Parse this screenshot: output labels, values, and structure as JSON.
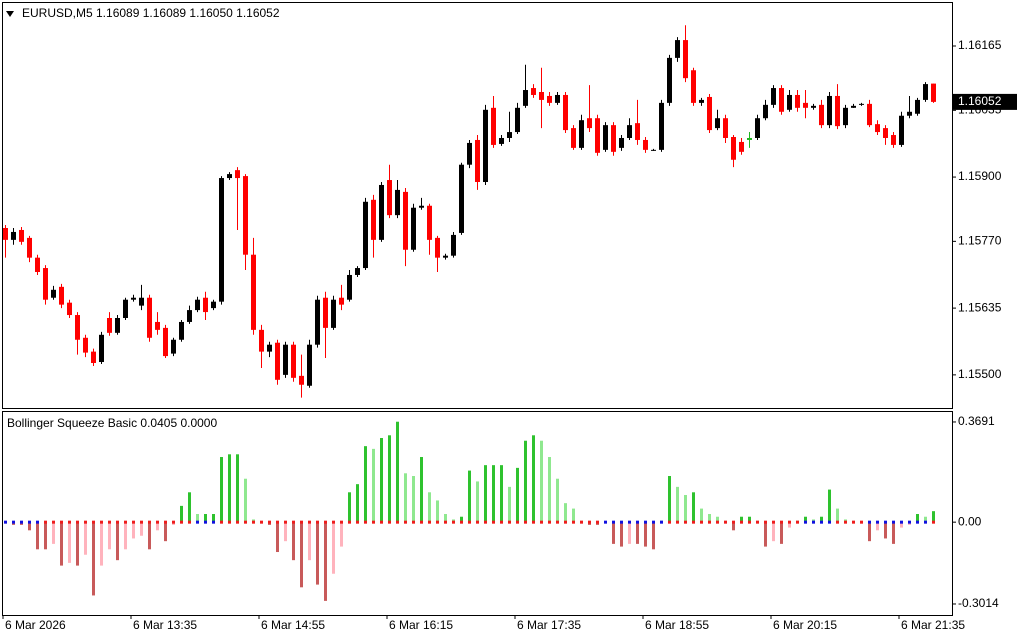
{
  "chart_data": [
    {
      "type": "candlestick",
      "title": "EURUSD,M5  1.16089 1.16089 1.16050 1.16052",
      "ylim": [
        1.15433,
        1.16254
      ],
      "yticks": [
        1.16165,
        1.16035,
        {
          "value": 1.159,
          "label": "1.15900"
        },
        {
          "value": 1.1577,
          "label": "1.15770"
        },
        1.15635,
        {
          "value": 1.155,
          "label": "1.15500"
        }
      ],
      "grid": false,
      "up_color": "#000000",
      "down_color": "#ff0000",
      "special_candles": [
        {
          "index": 93,
          "color": "#22b522"
        }
      ],
      "last_price": 1.16052,
      "open": [
        1.15797,
        1.15773,
        1.15793,
        1.15777,
        1.15737,
        1.15716,
        1.15656,
        1.15678,
        1.15646,
        1.15621,
        1.15575,
        1.15547,
        1.15526,
        1.15615,
        1.15585,
        1.15615,
        1.15652,
        1.1564,
        1.15656,
        1.15607,
        1.15595,
        1.15543,
        1.15571,
        1.15607,
        1.15631,
        1.15656,
        1.15635,
        1.15648,
        1.15898,
        1.15914,
        1.15902,
        1.15743,
        1.15591,
        1.15547,
        1.15565,
        1.155,
        1.15561,
        1.15498,
        1.15478,
        1.15561,
        1.15656,
        1.15595,
        1.15656,
        1.15652,
        1.15702,
        1.15716,
        1.15854,
        1.15773,
        1.15894,
        1.15823,
        1.1587,
        1.15753,
        1.15838,
        1.15842,
        1.15777,
        1.15737,
        1.15741,
        1.15787,
        1.15925,
        1.15975,
        1.1589,
        1.1604,
        1.15967,
        1.15979,
        1.15991,
        1.16044,
        1.1608,
        1.16072,
        1.16064,
        1.1605,
        1.16066,
        1.15999,
        1.15959,
        1.16019,
        1.16019,
        1.15955,
        1.16005,
        1.15959,
        1.15979,
        1.16009,
        1.15975,
        1.15955,
        1.15955,
        1.1605,
        1.16141,
        1.16177,
        1.16116,
        1.1605,
        1.16062,
        1.15999,
        1.16019,
        1.15981,
        1.15971,
        1.15975,
        1.15979,
        1.16019,
        1.16046,
        1.1608,
        1.16036,
        1.16066,
        1.1605,
        1.1604,
        1.16046,
        1.16005,
        1.16064,
        1.16005,
        1.1604,
        1.16046,
        1.16048,
        1.16007,
        1.15999,
        1.15985,
        1.15965,
        1.16024,
        1.16028,
        1.16056,
        1.16089
      ],
      "high": [
        1.15803,
        1.15797,
        1.15799,
        1.15781,
        1.15743,
        1.15722,
        1.1568,
        1.15684,
        1.15652,
        1.15627,
        1.15581,
        1.15553,
        1.15587,
        1.15627,
        1.15621,
        1.15656,
        1.15662,
        1.15682,
        1.15662,
        1.15627,
        1.15601,
        1.15575,
        1.15611,
        1.1564,
        1.15658,
        1.15668,
        1.15652,
        1.15902,
        1.1591,
        1.1592,
        1.15906,
        1.15777,
        1.15601,
        1.15567,
        1.15571,
        1.15567,
        1.15567,
        1.15541,
        1.15571,
        1.1566,
        1.15668,
        1.1566,
        1.15682,
        1.15712,
        1.1572,
        1.15858,
        1.15864,
        1.1589,
        1.15925,
        1.15894,
        1.15878,
        1.15846,
        1.15858,
        1.15846,
        1.15781,
        1.15745,
        1.15789,
        1.15929,
        1.15975,
        1.15985,
        1.16046,
        1.16064,
        1.15985,
        1.16032,
        1.1605,
        1.16127,
        1.16088,
        1.16121,
        1.16072,
        1.16072,
        1.16072,
        1.16005,
        1.16026,
        1.16086,
        1.16026,
        1.16011,
        1.16011,
        1.15985,
        1.16019,
        1.16056,
        1.15981,
        1.15957,
        1.16056,
        1.16147,
        1.16183,
        1.16207,
        1.16121,
        1.1606,
        1.16068,
        1.16036,
        1.16026,
        1.15985,
        1.15979,
        1.15991,
        1.16026,
        1.16056,
        1.16086,
        1.16086,
        1.16076,
        1.16076,
        1.16076,
        1.16048,
        1.16056,
        1.16072,
        1.16088,
        1.16046,
        1.16048,
        1.1605,
        1.16056,
        1.16015,
        1.16005,
        1.15991,
        1.16032,
        1.16064,
        1.1606,
        1.16092,
        1.16089
      ],
      "low": [
        1.15737,
        1.15763,
        1.15763,
        1.15728,
        1.15702,
        1.15642,
        1.15652,
        1.15635,
        1.15615,
        1.15541,
        1.15536,
        1.15518,
        1.15522,
        1.15579,
        1.15581,
        1.15611,
        1.15648,
        1.15631,
        1.15567,
        1.15581,
        1.15534,
        1.15538,
        1.15567,
        1.15603,
        1.15627,
        1.15611,
        1.15631,
        1.15642,
        1.15894,
        1.15793,
        1.15712,
        1.15581,
        1.15514,
        1.15536,
        1.1548,
        1.15494,
        1.15486,
        1.15454,
        1.15474,
        1.15555,
        1.15534,
        1.15591,
        1.15631,
        1.15648,
        1.15698,
        1.15712,
        1.15737,
        1.15769,
        1.15817,
        1.15817,
        1.1572,
        1.15749,
        1.15834,
        1.15743,
        1.15708,
        1.15733,
        1.15737,
        1.15783,
        1.15918,
        1.15874,
        1.15884,
        1.15959,
        1.15963,
        1.15971,
        1.15987,
        1.1604,
        1.1606,
        1.15999,
        1.16044,
        1.16046,
        1.15989,
        1.15955,
        1.15955,
        1.15991,
        1.15943,
        1.15951,
        1.15943,
        1.15953,
        1.15975,
        1.15965,
        1.15949,
        1.15953,
        1.15951,
        1.16044,
        1.16133,
        1.16092,
        1.16044,
        1.16044,
        1.15989,
        1.15995,
        1.15969,
        1.1592,
        1.15945,
        1.15959,
        1.15975,
        1.16015,
        1.1604,
        1.16026,
        1.16032,
        1.16032,
        1.16019,
        1.16036,
        1.15999,
        1.15999,
        1.15997,
        1.15999,
        1.1604,
        1.16044,
        1.16001,
        1.15985,
        1.15965,
        1.15959,
        1.15961,
        1.16019,
        1.16024,
        1.16052,
        1.1605
      ],
      "close": [
        1.15773,
        1.15789,
        1.15769,
        1.15737,
        1.15708,
        1.15652,
        1.15672,
        1.15642,
        1.15621,
        1.15571,
        1.15545,
        1.15524,
        1.15581,
        1.15585,
        1.15615,
        1.15652,
        1.15656,
        1.15656,
        1.15575,
        1.15591,
        1.15538,
        1.15571,
        1.15607,
        1.15631,
        1.15652,
        1.15627,
        1.15648,
        1.15898,
        1.15906,
        1.15898,
        1.15743,
        1.15591,
        1.15547,
        1.15561,
        1.1549,
        1.15561,
        1.15494,
        1.1548,
        1.15561,
        1.15652,
        1.15595,
        1.15652,
        1.15642,
        1.15702,
        1.15716,
        1.1585,
        1.15773,
        1.15884,
        1.15823,
        1.15874,
        1.15753,
        1.15838,
        1.15842,
        1.15773,
        1.15737,
        1.15741,
        1.15783,
        1.15925,
        1.15969,
        1.1589,
        1.16036,
        1.15965,
        1.15979,
        1.15991,
        1.1604,
        1.16076,
        1.16066,
        1.16056,
        1.1605,
        1.16066,
        1.15995,
        1.15959,
        1.16015,
        1.15999,
        1.15949,
        1.16005,
        1.15951,
        1.15979,
        1.16005,
        1.15975,
        1.15955,
        1.15955,
        1.1605,
        1.16141,
        1.16177,
        1.161,
        1.1605,
        1.16056,
        1.15995,
        1.16019,
        1.15979,
        1.15935,
        1.15951,
        1.15979,
        1.16019,
        1.16046,
        1.1608,
        1.16032,
        1.16066,
        1.1604,
        1.1604,
        1.16044,
        1.16005,
        1.16064,
        1.16003,
        1.1604,
        1.16044,
        1.16048,
        1.16005,
        1.15991,
        1.15979,
        1.15965,
        1.16024,
        1.16032,
        1.16056,
        1.16088,
        1.16052
      ]
    },
    {
      "type": "histogram_squeeze",
      "title": "Bollinger Squeeze Basic 0.0405 0.0000",
      "ylim": [
        -0.342,
        0.4095
      ],
      "yticks": [
        0.3691,
        {
          "value": 0,
          "label": "0.00"
        },
        -0.3014
      ],
      "colors": {
        "up_rising": "#2ec22e",
        "up_falling": "#8fe88f",
        "down_falling": "#c85a5a",
        "down_rising": "#ffb3bd"
      },
      "dots": {
        "on_color": "#1010e0",
        "off_color": "#ee1c1c",
        "on_ranges": [
          [
            0,
            4
          ],
          [
            24,
            26
          ],
          [
            75,
            82
          ],
          [
            100,
            103
          ],
          [
            108,
            115
          ]
        ]
      },
      "categories": [
        "6 Mar 2026",
        null,
        null,
        null,
        null,
        null,
        null,
        null,
        null,
        null,
        null,
        null,
        null,
        null,
        null,
        null,
        "6 Mar 13:35",
        null,
        null,
        null,
        null,
        null,
        null,
        null,
        null,
        null,
        null,
        null,
        null,
        null,
        null,
        null,
        "6 Mar 14:55",
        null,
        null,
        null,
        null,
        null,
        null,
        null,
        null,
        null,
        null,
        null,
        null,
        null,
        null,
        null,
        "6 Mar 16:15",
        null,
        null,
        null,
        null,
        null,
        null,
        null,
        null,
        null,
        null,
        null,
        null,
        null,
        null,
        null,
        "6 Mar 17:35",
        null,
        null,
        null,
        null,
        null,
        null,
        null,
        null,
        null,
        null,
        null,
        null,
        null,
        null,
        null,
        "6 Mar 18:55",
        null,
        null,
        null,
        null,
        null,
        null,
        null,
        null,
        null,
        null,
        null,
        null,
        null,
        null,
        null,
        "6 Mar 20:15",
        null,
        null,
        null,
        null,
        null,
        null,
        null,
        null,
        null,
        null,
        null,
        null,
        null,
        null,
        null,
        "6 Mar 21:35",
        null,
        null,
        null,
        null
      ],
      "values": [
        -0.005,
        -0.01,
        -0.01,
        -0.03,
        -0.1,
        -0.1,
        -0.08,
        -0.16,
        -0.15,
        -0.16,
        -0.12,
        -0.27,
        -0.16,
        -0.1,
        -0.14,
        -0.1,
        -0.06,
        -0.05,
        -0.1,
        -0.03,
        -0.07,
        -0.01,
        0.06,
        0.11,
        0.03,
        0.03,
        0.03,
        0.24,
        0.25,
        0.25,
        0.16,
        0.01,
        0,
        -0.01,
        -0.11,
        -0.07,
        -0.14,
        -0.24,
        -0.14,
        -0.23,
        -0.29,
        -0.19,
        -0.09,
        0.11,
        0.14,
        0.28,
        0.27,
        0.31,
        0.32,
        0.37,
        0.18,
        0.17,
        0.24,
        0.11,
        0.08,
        0.03,
        0.01,
        0.02,
        0.19,
        0.15,
        0.21,
        0.21,
        0.21,
        0.13,
        0.2,
        0.3,
        0.32,
        0.3,
        0.24,
        0.16,
        0.07,
        0.05,
        0.005,
        -0.01,
        -0.01,
        -0.005,
        -0.08,
        -0.09,
        -0.08,
        -0.08,
        -0.09,
        -0.1,
        0.005,
        0.17,
        0.13,
        0.1,
        0.11,
        0.05,
        0.03,
        0.02,
        0.005,
        -0.03,
        0.02,
        0.02,
        0.005,
        -0.09,
        -0.07,
        -0.08,
        -0.02,
        0.005,
        0.02,
        0.01,
        0.02,
        0.12,
        0.05,
        0.01,
        0.005,
        -0.005,
        -0.07,
        -0.03,
        -0.06,
        -0.08,
        -0.02,
        -0.01,
        0.03,
        0.02,
        0.0405
      ]
    }
  ]
}
